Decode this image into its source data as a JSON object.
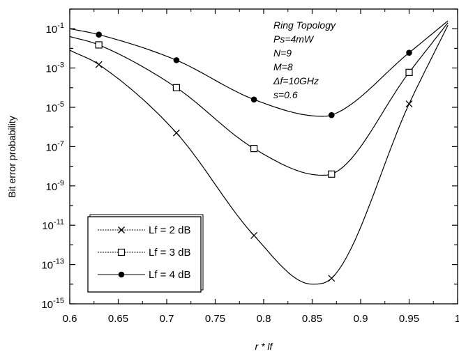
{
  "chart_data": {
    "type": "line",
    "title": "",
    "xlabel": "r * lf",
    "ylabel": "Bit error probability",
    "xlim": [
      0.6,
      1.0
    ],
    "ylim_log10": [
      -15,
      0
    ],
    "y_scale": "log",
    "x_ticks": [
      0.6,
      0.65,
      0.7,
      0.75,
      0.8,
      0.85,
      0.9,
      0.95,
      1
    ],
    "x_tick_labels": [
      "0.6",
      "0.65",
      "0.7",
      "0.75",
      "0.8",
      "0.85",
      "0.9",
      "0.95",
      "1"
    ],
    "y_tick_exponents": [
      -1,
      -3,
      -5,
      -7,
      -9,
      -11,
      -13,
      -15
    ],
    "y_tick_base": "10",
    "grid": false,
    "legend_position": "bottom-left",
    "annotations": [
      "Ring Topology",
      "Ps=4mW",
      "N=9",
      "M=8",
      "Δf=10GHz",
      "s=0.6"
    ],
    "series": [
      {
        "name": "Lf = 2 dB",
        "marker": "x",
        "x": [
          0.6,
          0.63,
          0.71,
          0.79,
          0.87,
          0.95,
          0.99
        ],
        "y": [
          0.008,
          0.0015,
          5e-07,
          3e-12,
          2e-14,
          1.5e-05,
          0.15
        ],
        "minimum": {
          "x": 0.85,
          "y": 1e-14
        }
      },
      {
        "name": "Lf = 3 dB",
        "marker": "square-open",
        "x": [
          0.6,
          0.63,
          0.71,
          0.79,
          0.87,
          0.95,
          0.99
        ],
        "y": [
          0.04,
          0.015,
          0.0001,
          8e-08,
          4e-09,
          0.0006,
          0.2
        ],
        "minimum": {
          "x": 0.86,
          "y": 3.5e-09
        }
      },
      {
        "name": "Lf = 4 dB",
        "marker": "circle-filled",
        "x": [
          0.6,
          0.63,
          0.71,
          0.79,
          0.87,
          0.95,
          0.99
        ],
        "y": [
          0.1,
          0.05,
          0.0025,
          2.5e-05,
          4e-06,
          0.006,
          0.25
        ],
        "minimum": {
          "x": 0.86,
          "y": 3.5e-06
        }
      }
    ]
  }
}
